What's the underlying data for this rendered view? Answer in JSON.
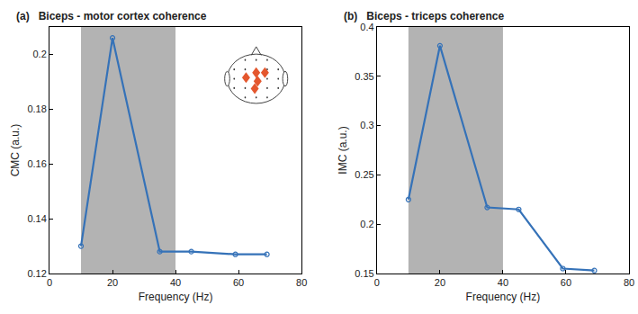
{
  "chart_data": [
    {
      "type": "line",
      "panel": "(a)",
      "title": "Biceps - motor cortex coherence",
      "x_label": "Frequency (Hz)",
      "y_label": "CMC (a.u.)",
      "x": [
        10,
        20,
        35,
        45,
        59,
        69
      ],
      "values": [
        0.13,
        0.206,
        0.128,
        0.128,
        0.127,
        0.127
      ],
      "color": "#3572b8",
      "marker": "circle-open",
      "xlim": [
        0,
        80
      ],
      "xticks": [
        0,
        20,
        40,
        60,
        80
      ],
      "ylim": [
        0.12,
        0.21
      ],
      "yticks": [
        0.12,
        0.14,
        0.16,
        0.18,
        0.2
      ],
      "shaded_range": [
        10,
        40
      ],
      "grid": false
    },
    {
      "type": "line",
      "panel": "(b)",
      "title": "Biceps - triceps coherence",
      "x_label": "Frequency (Hz)",
      "y_label": "IMC (a.u.)",
      "x": [
        10,
        20,
        35,
        45,
        59,
        69
      ],
      "values": [
        0.225,
        0.381,
        0.217,
        0.215,
        0.155,
        0.153
      ],
      "color": "#3572b8",
      "marker": "circle-open",
      "xlim": [
        0,
        80
      ],
      "xticks": [
        0,
        20,
        40,
        60,
        80
      ],
      "ylim": [
        0.15,
        0.4
      ],
      "yticks": [
        0.15,
        0.2,
        0.25,
        0.3,
        0.35,
        0.4
      ],
      "shaded_range": [
        10,
        40
      ],
      "grid": false
    }
  ]
}
